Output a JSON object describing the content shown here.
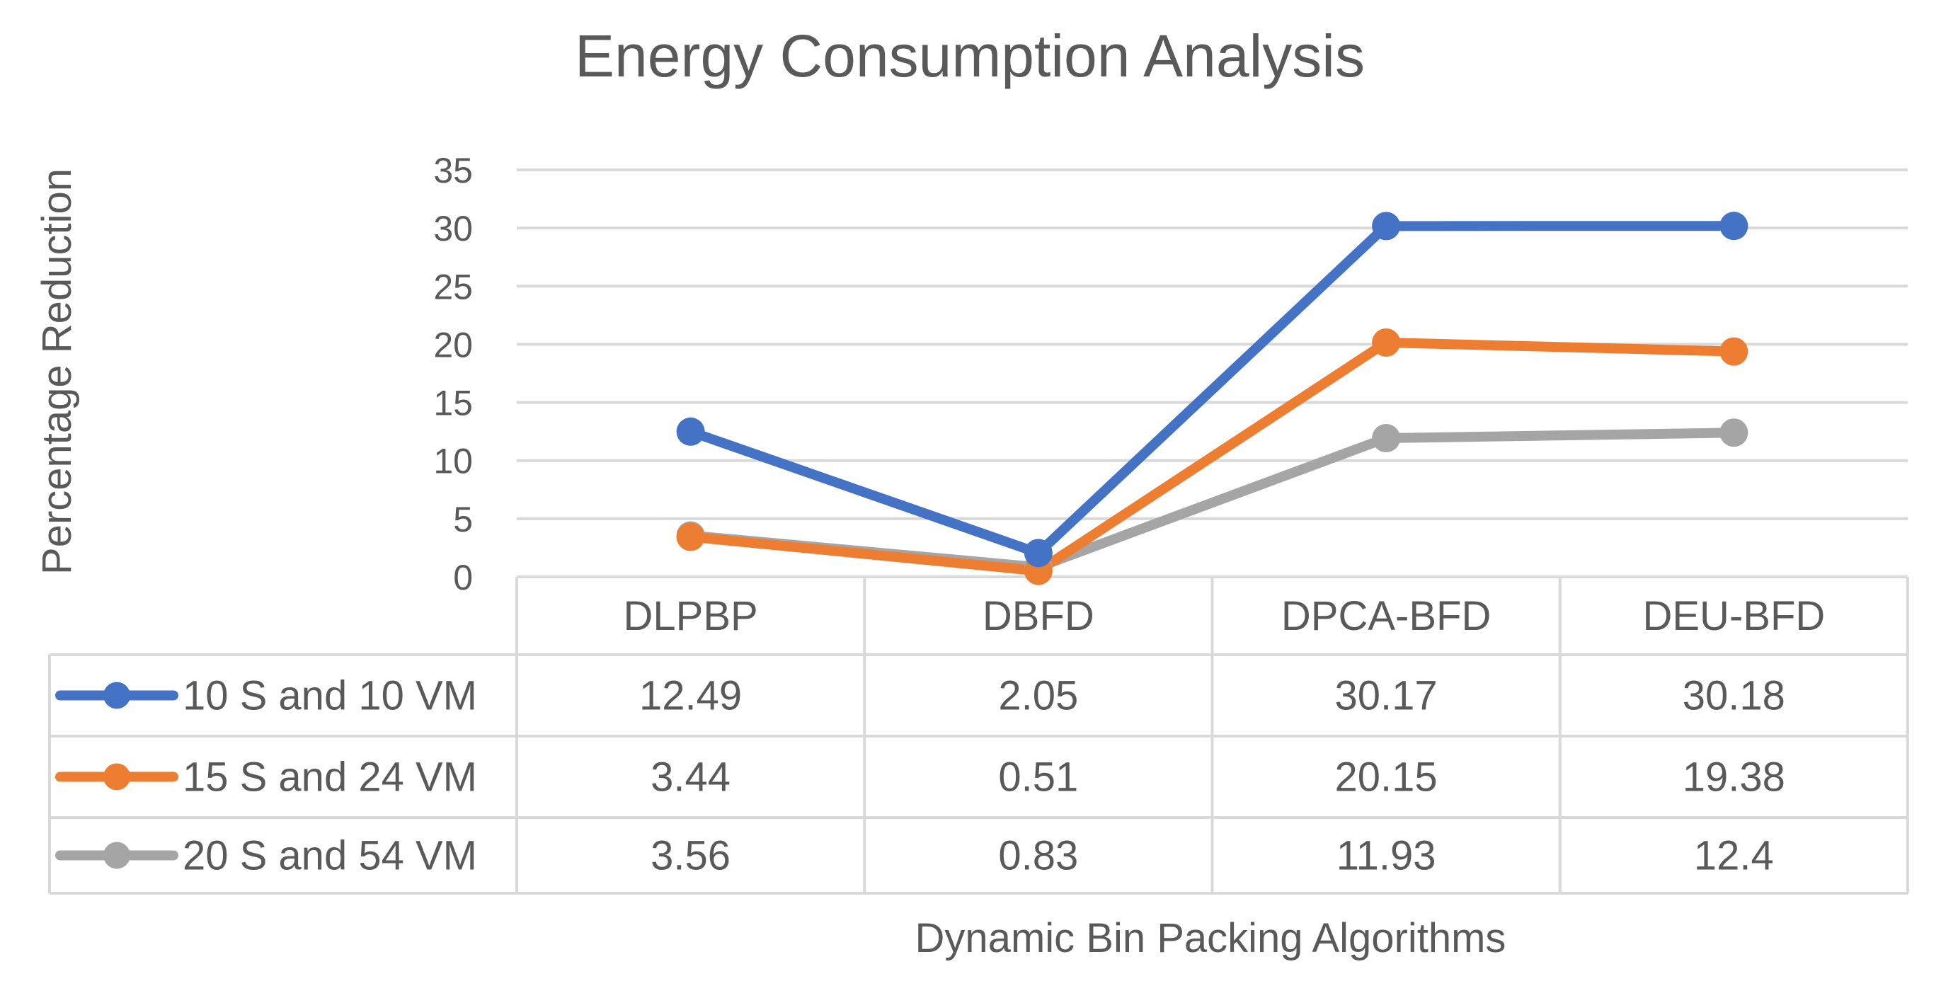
{
  "chart_data": {
    "type": "line",
    "title": "Energy Consumption Analysis",
    "xlabel": "Dynamic Bin Packing Algorithms",
    "ylabel": "Percentage Reduction",
    "ylim": [
      0,
      35
    ],
    "yticks": [
      0,
      5,
      10,
      15,
      20,
      25,
      30,
      35
    ],
    "categories": [
      "DLPBP",
      "DBFD",
      "DPCA-BFD",
      "DEU-BFD"
    ],
    "grid": true,
    "legend": "data-table-left",
    "series": [
      {
        "name": "10 S and 10 VM",
        "color": "#4472C4",
        "values": [
          12.49,
          2.05,
          30.17,
          30.18
        ],
        "labels": [
          "12.49",
          "2.05",
          "30.17",
          "30.18"
        ]
      },
      {
        "name": "15 S and 24 VM",
        "color": "#ED7D31",
        "values": [
          3.44,
          0.51,
          20.15,
          19.38
        ],
        "labels": [
          "3.44",
          "0.51",
          "20.15",
          "19.38"
        ]
      },
      {
        "name": "20 S and 54 VM",
        "color": "#A5A5A5",
        "values": [
          3.56,
          0.83,
          11.93,
          12.4
        ],
        "labels": [
          "3.56",
          "0.83",
          "11.93",
          "12.4"
        ]
      }
    ]
  }
}
